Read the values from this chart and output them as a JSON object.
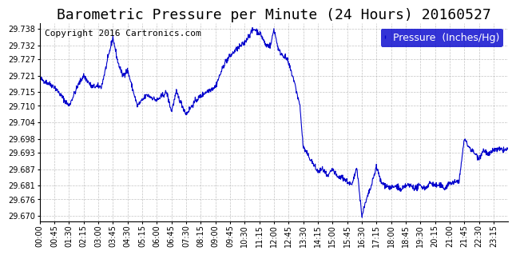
{
  "title": "Barometric Pressure per Minute (24 Hours) 20160527",
  "copyright": "Copyright 2016 Cartronics.com",
  "legend_label": "Pressure  (Inches/Hg)",
  "legend_bg": "#0000cc",
  "legend_fg": "#ffffff",
  "line_color": "#0000cc",
  "bg_color": "#ffffff",
  "plot_bg": "#ffffff",
  "grid_color": "#aaaaaa",
  "yticks": [
    29.67,
    29.676,
    29.681,
    29.687,
    29.693,
    29.698,
    29.704,
    29.71,
    29.715,
    29.721,
    29.727,
    29.732,
    29.738
  ],
  "ylim": [
    29.668,
    29.74
  ],
  "xtick_positions": [
    0,
    45,
    90,
    135,
    180,
    225,
    270,
    315,
    360,
    405,
    450,
    495,
    540,
    585,
    630,
    675,
    720,
    765,
    810,
    855,
    900,
    945,
    990,
    1035,
    1080,
    1125,
    1170,
    1215,
    1260,
    1305,
    1350,
    1395
  ],
  "xtick_labels": [
    "00:00",
    "00:45",
    "01:30",
    "02:15",
    "03:00",
    "03:45",
    "04:30",
    "05:15",
    "06:00",
    "06:45",
    "07:30",
    "08:15",
    "09:00",
    "09:45",
    "10:30",
    "11:15",
    "12:00",
    "12:45",
    "13:30",
    "14:15",
    "15:00",
    "15:45",
    "16:30",
    "17:15",
    "18:00",
    "18:45",
    "19:30",
    "20:15",
    "21:00",
    "21:45",
    "22:30",
    "23:15"
  ],
  "anchors_x": [
    0,
    45,
    90,
    120,
    135,
    160,
    190,
    225,
    240,
    255,
    270,
    300,
    330,
    360,
    390,
    405,
    420,
    450,
    480,
    510,
    540,
    570,
    600,
    630,
    645,
    660,
    680,
    695,
    710,
    720,
    735,
    760,
    780,
    800,
    810,
    820,
    840,
    855,
    870,
    885,
    900,
    915,
    930,
    960,
    975,
    990,
    1005,
    1020,
    1035,
    1050,
    1065,
    1080,
    1100,
    1110,
    1125,
    1140,
    1155,
    1170,
    1185,
    1200,
    1215,
    1230,
    1245,
    1260,
    1275,
    1290,
    1305,
    1320,
    1335,
    1350,
    1365,
    1380,
    1395,
    1440
  ],
  "anchors_y": [
    29.72,
    29.717,
    29.71,
    29.718,
    29.721,
    29.717,
    29.717,
    29.735,
    29.726,
    29.721,
    29.723,
    29.71,
    29.714,
    29.712,
    29.715,
    29.708,
    29.715,
    29.707,
    29.712,
    29.715,
    29.717,
    29.726,
    29.73,
    29.733,
    29.736,
    29.738,
    29.736,
    29.732,
    29.732,
    29.738,
    29.73,
    29.727,
    29.72,
    29.71,
    29.695,
    29.693,
    29.689,
    29.686,
    29.687,
    29.684,
    29.687,
    29.684,
    29.684,
    29.681,
    29.688,
    29.67,
    29.676,
    29.681,
    29.688,
    29.682,
    29.681,
    29.68,
    29.681,
    29.679,
    29.681,
    29.681,
    29.68,
    29.681,
    29.68,
    29.682,
    29.681,
    29.681,
    29.68,
    29.682,
    29.682,
    29.683,
    29.698,
    29.695,
    29.693,
    29.691,
    29.694,
    29.692,
    29.694,
    29.694
  ],
  "title_fontsize": 13,
  "copyright_fontsize": 8,
  "tick_fontsize": 7,
  "legend_fontsize": 9,
  "noise_seed": 42,
  "noise_std": 0.0005
}
